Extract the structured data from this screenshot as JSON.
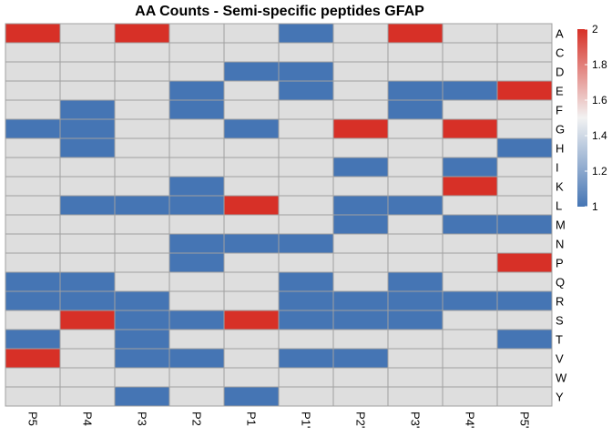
{
  "chart_data": {
    "type": "heatmap",
    "title": "AA Counts - Semi-specific peptides GFAP",
    "columns": [
      "P5",
      "P4",
      "P3",
      "P2",
      "P1",
      "P1'",
      "P2'",
      "P3'",
      "P4'",
      "P5'"
    ],
    "rows": [
      "A",
      "C",
      "D",
      "E",
      "F",
      "G",
      "H",
      "I",
      "K",
      "L",
      "M",
      "N",
      "P",
      "Q",
      "R",
      "S",
      "T",
      "V",
      "W",
      "Y"
    ],
    "values": [
      [
        2,
        0,
        2,
        0,
        0,
        1,
        0,
        2,
        0,
        0
      ],
      [
        0,
        0,
        0,
        0,
        0,
        0,
        0,
        0,
        0,
        0
      ],
      [
        0,
        0,
        0,
        0,
        1,
        1,
        0,
        0,
        0,
        0
      ],
      [
        0,
        0,
        0,
        1,
        0,
        1,
        0,
        1,
        1,
        2
      ],
      [
        0,
        1,
        0,
        1,
        0,
        0,
        0,
        1,
        0,
        0
      ],
      [
        1,
        1,
        0,
        0,
        1,
        0,
        2,
        0,
        2,
        0
      ],
      [
        0,
        1,
        0,
        0,
        0,
        0,
        0,
        0,
        0,
        1
      ],
      [
        0,
        0,
        0,
        0,
        0,
        0,
        1,
        0,
        1,
        0
      ],
      [
        0,
        0,
        0,
        1,
        0,
        0,
        0,
        0,
        2,
        0
      ],
      [
        0,
        1,
        1,
        1,
        2,
        0,
        1,
        1,
        0,
        0
      ],
      [
        0,
        0,
        0,
        0,
        0,
        0,
        1,
        0,
        1,
        1
      ],
      [
        0,
        0,
        0,
        1,
        1,
        1,
        0,
        0,
        0,
        0
      ],
      [
        0,
        0,
        0,
        1,
        0,
        0,
        0,
        0,
        0,
        2
      ],
      [
        1,
        1,
        0,
        0,
        0,
        1,
        0,
        1,
        0,
        0
      ],
      [
        1,
        1,
        1,
        0,
        0,
        1,
        1,
        1,
        1,
        1
      ],
      [
        0,
        2,
        1,
        1,
        2,
        1,
        1,
        1,
        0,
        0
      ],
      [
        1,
        0,
        1,
        0,
        0,
        0,
        0,
        0,
        0,
        1
      ],
      [
        2,
        0,
        1,
        1,
        0,
        1,
        1,
        0,
        0,
        0
      ],
      [
        0,
        0,
        0,
        0,
        0,
        0,
        0,
        0,
        0,
        0
      ],
      [
        0,
        0,
        1,
        0,
        1,
        0,
        0,
        0,
        0,
        0
      ]
    ],
    "colors": {
      "zero": "#dedede",
      "low": "#4575b4",
      "high": "#d73027",
      "grid": "#a0a0a0"
    },
    "legend": {
      "position": "right",
      "range": [
        1,
        2
      ],
      "ticks": [
        1,
        1.2,
        1.4,
        1.6,
        1.8,
        2
      ],
      "tick_labels": [
        "1",
        "1.2",
        "1.4",
        "1.6",
        "1.8",
        "2"
      ]
    }
  }
}
